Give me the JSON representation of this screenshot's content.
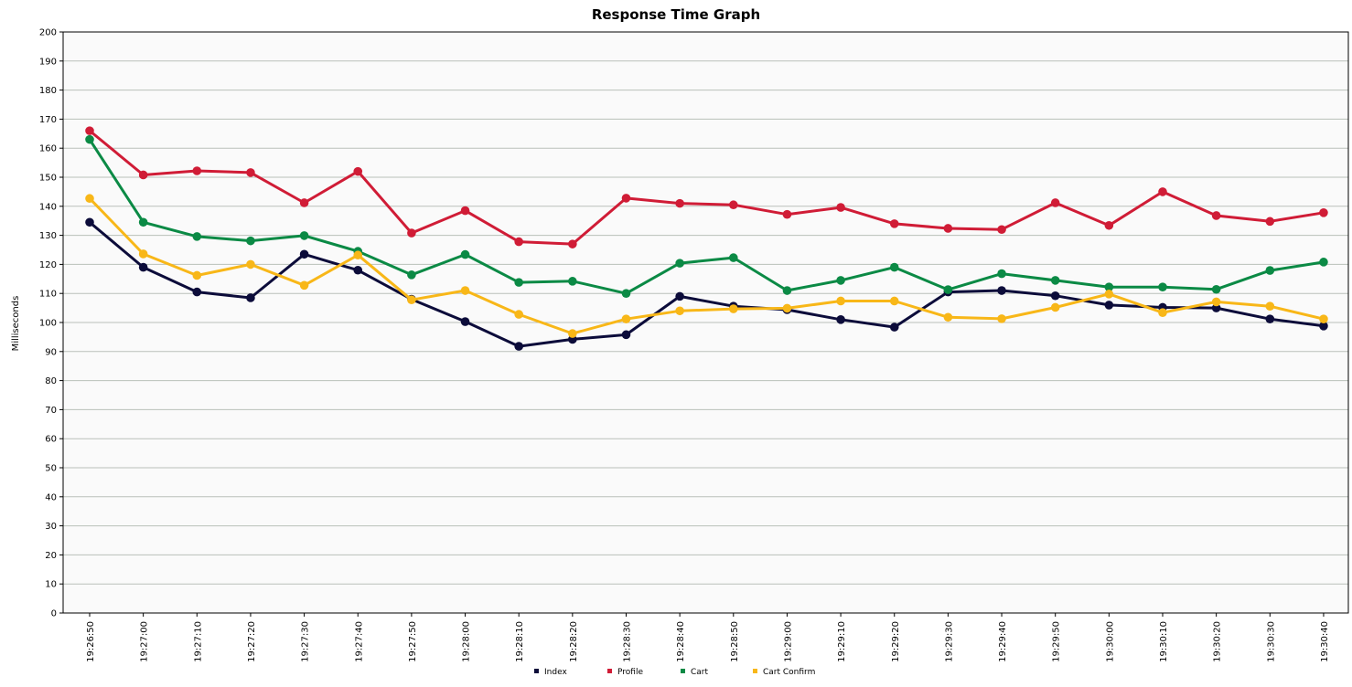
{
  "chart_data": {
    "type": "line",
    "title": "Response Time Graph",
    "xlabel": "",
    "ylabel": "Milliseconds",
    "ylim": [
      0,
      200
    ],
    "yticks": [
      0,
      10,
      20,
      30,
      40,
      50,
      60,
      70,
      80,
      90,
      100,
      110,
      120,
      130,
      140,
      150,
      160,
      170,
      180,
      190,
      200
    ],
    "grid": true,
    "legend_position": "bottom",
    "categories": [
      "19:26:50",
      "19:27:00",
      "19:27:10",
      "19:27:20",
      "19:27:30",
      "19:27:40",
      "19:27:50",
      "19:28:00",
      "19:28:10",
      "19:28:20",
      "19:28:30",
      "19:28:40",
      "19:28:50",
      "19:29:00",
      "19:29:10",
      "19:29:20",
      "19:29:30",
      "19:29:40",
      "19:29:50",
      "19:30:00",
      "19:30:10",
      "19:30:20",
      "19:30:30",
      "19:30:40"
    ],
    "series": [
      {
        "name": "Index",
        "color": "#0c0c3a",
        "values": [
          134.5,
          119,
          110.5,
          108.5,
          123.5,
          118,
          108,
          100.3,
          91.8,
          94.2,
          95.8,
          109,
          105.6,
          104.4,
          101,
          98.4,
          110.5,
          111,
          109.2,
          106,
          105.2,
          105,
          101.2,
          98.8
        ]
      },
      {
        "name": "Profile",
        "color": "#d01c36",
        "values": [
          166,
          150.8,
          152.2,
          151.6,
          141.2,
          152,
          130.8,
          138.5,
          127.8,
          127,
          142.8,
          141,
          140.5,
          137.2,
          139.6,
          134,
          132.4,
          132,
          141.2,
          133.4,
          145,
          136.8,
          134.8,
          137.8
        ]
      },
      {
        "name": "Cart",
        "color": "#0b8a45",
        "values": [
          163,
          134.5,
          129.6,
          128.1,
          129.9,
          124.5,
          116.4,
          123.4,
          113.8,
          114.2,
          110,
          120.4,
          122.3,
          111,
          114.5,
          119,
          111.3,
          116.8,
          114.5,
          112.2,
          112.2,
          111.4,
          117.9,
          120.8
        ]
      },
      {
        "name": "Cart Confirm",
        "color": "#f8b718",
        "values": [
          142.7,
          123.6,
          116.2,
          120,
          112.8,
          123.2,
          107.8,
          111,
          102.8,
          96.2,
          101.2,
          104,
          104.7,
          104.9,
          107.4,
          107.4,
          101.8,
          101.3,
          105.2,
          109.8,
          103.4,
          107.1,
          105.6,
          101.2
        ]
      }
    ]
  }
}
